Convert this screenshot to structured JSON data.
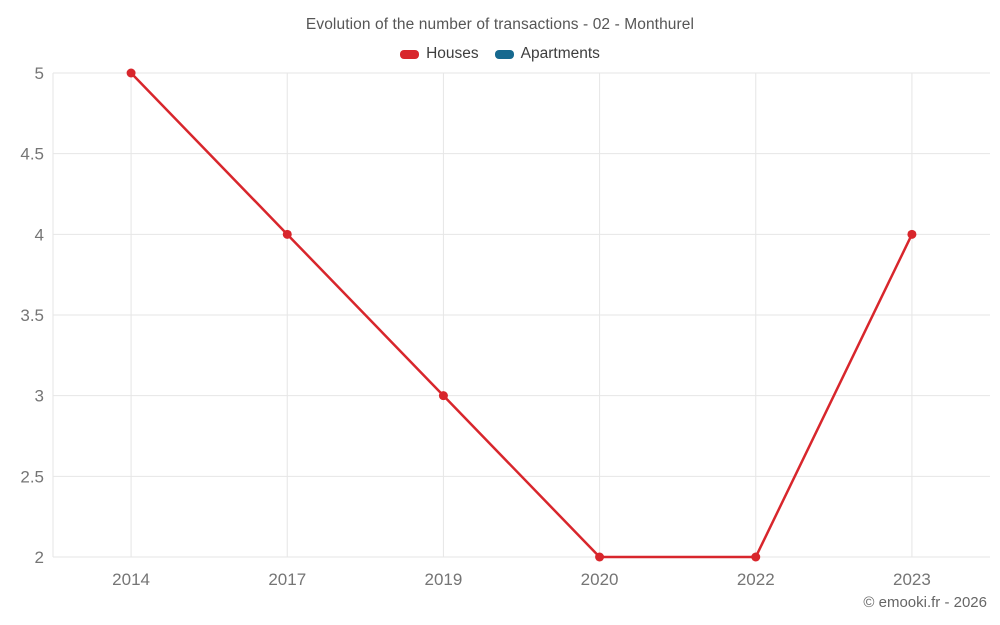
{
  "header": {
    "title": "Evolution of the number of transactions - 02 - Monthurel"
  },
  "legend": {
    "items": [
      {
        "label": "Houses",
        "color": "#d8262c"
      },
      {
        "label": "Apartments",
        "color": "#16698f"
      }
    ]
  },
  "footer": {
    "copyright": "© emooki.fr - 2026"
  },
  "style": {
    "grid_color": "#e6e6e6",
    "tick_color": "#757575",
    "title_color": "#565656",
    "legend_text_color": "#3e3e3e",
    "copyright_color": "#666666",
    "background": "#ffffff"
  },
  "chart_data": {
    "type": "line",
    "title": "Evolution of the number of transactions - 02 - Monthurel",
    "categories": [
      "2014",
      "2017",
      "2019",
      "2020",
      "2022",
      "2023"
    ],
    "series": [
      {
        "name": "Houses",
        "color": "#d8262c",
        "values": [
          5,
          4,
          3,
          2,
          2,
          4
        ]
      },
      {
        "name": "Apartments",
        "color": "#16698f",
        "values": []
      }
    ],
    "xlabel": "",
    "ylabel": "",
    "ylim": [
      2,
      5
    ],
    "ytick_step": 0.5,
    "yticks": [
      2,
      2.5,
      3,
      3.5,
      4,
      4.5,
      5
    ],
    "grid": true,
    "legend_position": "top",
    "marker": "circle"
  }
}
